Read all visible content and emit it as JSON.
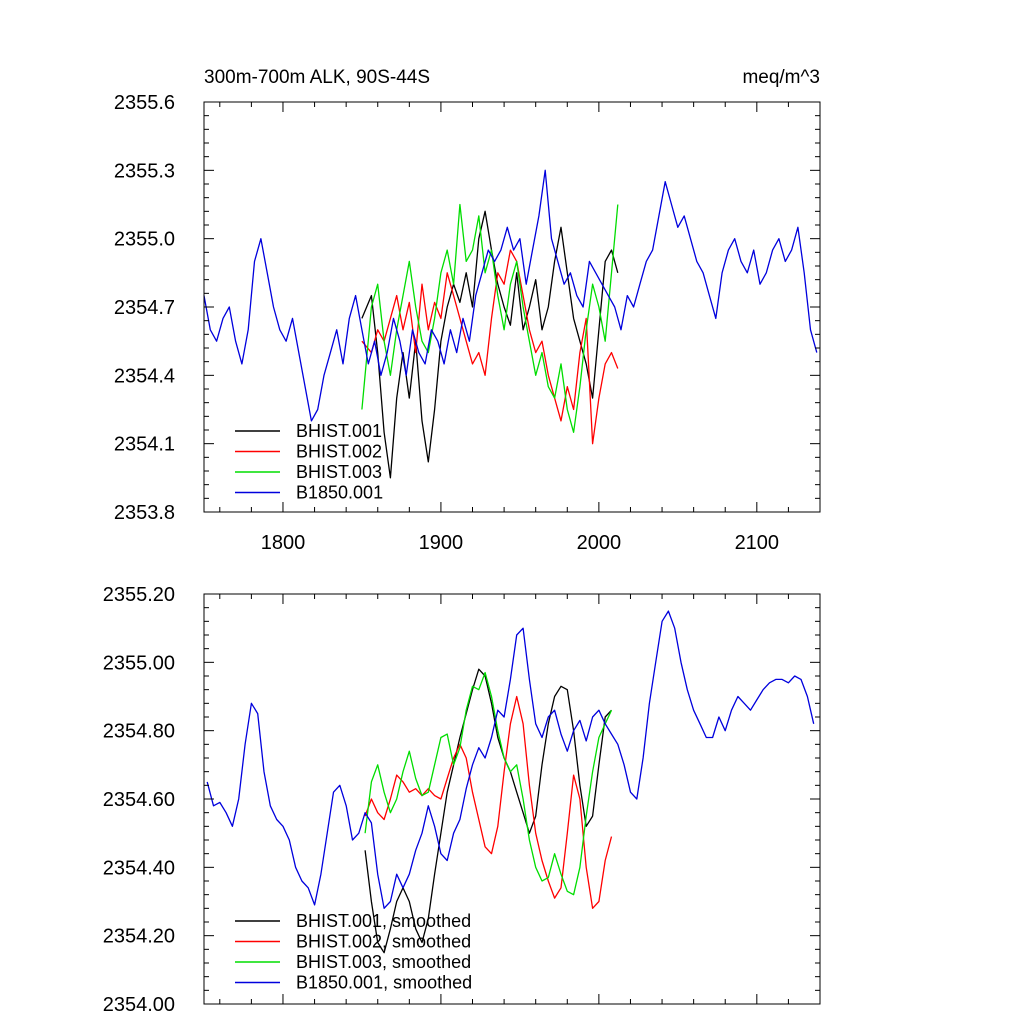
{
  "chart_data": [
    {
      "type": "line",
      "title": "300m-700m ALK, 90S-44S",
      "units": "meq/m^3",
      "xlim": [
        1750,
        2140
      ],
      "ylim": [
        2353.8,
        2355.6
      ],
      "xticks": [
        1800,
        1900,
        2000,
        2100
      ],
      "xtick_labels": [
        "1800",
        "1900",
        "2000",
        "2100"
      ],
      "yticks": [
        2353.8,
        2354.1,
        2354.4,
        2354.7,
        2355.0,
        2355.3,
        2355.6
      ],
      "ytick_labels": [
        "2353.8",
        "2354.1",
        "2354.4",
        "2354.7",
        "2355.0",
        "2355.3",
        "2355.6"
      ],
      "grid": false,
      "legend_position": "bottom-left",
      "series": [
        {
          "name": "BHIST.001",
          "color": "#000000",
          "x": [
            1850,
            1856,
            1860,
            1864,
            1868,
            1872,
            1876,
            1880,
            1884,
            1888,
            1892,
            1896,
            1900,
            1904,
            1908,
            1912,
            1916,
            1920,
            1924,
            1928,
            1932,
            1936,
            1940,
            1944,
            1948,
            1952,
            1956,
            1960,
            1964,
            1968,
            1972,
            1976,
            1980,
            1984,
            1988,
            1992,
            1996,
            2000,
            2004,
            2008,
            2012
          ],
          "y": [
            2354.65,
            2354.75,
            2354.5,
            2354.15,
            2353.95,
            2354.3,
            2354.5,
            2354.3,
            2354.55,
            2354.2,
            2354.02,
            2354.25,
            2354.55,
            2354.7,
            2354.8,
            2354.72,
            2354.85,
            2354.7,
            2355.0,
            2355.12,
            2354.95,
            2354.8,
            2354.7,
            2354.62,
            2354.85,
            2354.6,
            2354.7,
            2354.82,
            2354.6,
            2354.7,
            2354.9,
            2355.05,
            2354.85,
            2354.65,
            2354.55,
            2354.45,
            2354.3,
            2354.6,
            2354.9,
            2354.95,
            2354.85
          ]
        },
        {
          "name": "BHIST.002",
          "color": "#ff0000",
          "x": [
            1850,
            1856,
            1860,
            1864,
            1868,
            1872,
            1876,
            1880,
            1884,
            1888,
            1892,
            1896,
            1900,
            1904,
            1908,
            1912,
            1916,
            1920,
            1924,
            1928,
            1932,
            1936,
            1940,
            1944,
            1948,
            1952,
            1956,
            1960,
            1964,
            1968,
            1972,
            1976,
            1980,
            1984,
            1988,
            1992,
            1996,
            2000,
            2004,
            2008,
            2012
          ],
          "y": [
            2354.55,
            2354.5,
            2354.6,
            2354.55,
            2354.65,
            2354.75,
            2354.6,
            2354.72,
            2354.5,
            2354.8,
            2354.6,
            2354.72,
            2354.65,
            2354.85,
            2354.75,
            2354.65,
            2354.55,
            2354.45,
            2354.5,
            2354.4,
            2354.65,
            2354.85,
            2354.8,
            2354.95,
            2354.9,
            2354.75,
            2354.6,
            2354.5,
            2354.55,
            2354.4,
            2354.3,
            2354.2,
            2354.35,
            2354.25,
            2354.5,
            2354.65,
            2354.1,
            2354.3,
            2354.45,
            2354.5,
            2354.43
          ]
        },
        {
          "name": "BHIST.003",
          "color": "#00dd00",
          "x": [
            1850,
            1856,
            1860,
            1864,
            1868,
            1872,
            1876,
            1880,
            1884,
            1888,
            1892,
            1896,
            1900,
            1904,
            1908,
            1912,
            1916,
            1920,
            1924,
            1928,
            1932,
            1936,
            1940,
            1944,
            1948,
            1952,
            1956,
            1960,
            1964,
            1968,
            1972,
            1976,
            1980,
            1984,
            1988,
            1992,
            1996,
            2000,
            2004,
            2008,
            2012
          ],
          "y": [
            2354.25,
            2354.7,
            2354.8,
            2354.55,
            2354.4,
            2354.6,
            2354.75,
            2354.9,
            2354.7,
            2354.55,
            2354.5,
            2354.65,
            2354.85,
            2354.95,
            2354.8,
            2355.15,
            2354.9,
            2354.95,
            2355.1,
            2354.85,
            2354.95,
            2354.75,
            2354.6,
            2354.8,
            2354.9,
            2354.7,
            2354.55,
            2354.4,
            2354.5,
            2354.35,
            2354.3,
            2354.45,
            2354.25,
            2354.15,
            2354.35,
            2354.6,
            2354.8,
            2354.7,
            2354.55,
            2354.85,
            2355.15
          ]
        },
        {
          "name": "B1850.001",
          "color": "#0000dd",
          "x": [
            1750,
            1754,
            1758,
            1762,
            1766,
            1770,
            1774,
            1778,
            1782,
            1786,
            1790,
            1794,
            1798,
            1802,
            1806,
            1810,
            1814,
            1818,
            1822,
            1826,
            1830,
            1834,
            1838,
            1842,
            1846,
            1850,
            1854,
            1858,
            1862,
            1866,
            1870,
            1874,
            1878,
            1882,
            1886,
            1890,
            1894,
            1898,
            1902,
            1906,
            1910,
            1914,
            1918,
            1922,
            1926,
            1930,
            1934,
            1938,
            1942,
            1946,
            1950,
            1954,
            1958,
            1962,
            1966,
            1970,
            1974,
            1978,
            1982,
            1986,
            1990,
            1994,
            1998,
            2002,
            2006,
            2010,
            2014,
            2018,
            2022,
            2026,
            2030,
            2034,
            2038,
            2042,
            2046,
            2050,
            2054,
            2058,
            2062,
            2066,
            2070,
            2074,
            2078,
            2082,
            2086,
            2090,
            2094,
            2098,
            2102,
            2106,
            2110,
            2114,
            2118,
            2122,
            2126,
            2130,
            2134,
            2138
          ],
          "y": [
            2354.75,
            2354.6,
            2354.55,
            2354.65,
            2354.7,
            2354.55,
            2354.45,
            2354.6,
            2354.9,
            2355.0,
            2354.85,
            2354.7,
            2354.6,
            2354.55,
            2354.65,
            2354.5,
            2354.35,
            2354.2,
            2354.25,
            2354.4,
            2354.5,
            2354.6,
            2354.45,
            2354.65,
            2354.75,
            2354.6,
            2354.45,
            2354.55,
            2354.4,
            2354.5,
            2354.65,
            2354.55,
            2354.4,
            2354.6,
            2354.5,
            2354.45,
            2354.6,
            2354.55,
            2354.45,
            2354.6,
            2354.5,
            2354.65,
            2354.55,
            2354.75,
            2354.85,
            2354.95,
            2354.9,
            2354.95,
            2355.05,
            2354.95,
            2355.0,
            2354.8,
            2354.95,
            2355.1,
            2355.3,
            2355.0,
            2354.9,
            2354.8,
            2354.85,
            2354.75,
            2354.7,
            2354.9,
            2354.85,
            2354.8,
            2354.75,
            2354.7,
            2354.6,
            2354.75,
            2354.7,
            2354.8,
            2354.9,
            2354.95,
            2355.1,
            2355.25,
            2355.15,
            2355.05,
            2355.1,
            2355.0,
            2354.9,
            2354.85,
            2354.75,
            2354.65,
            2354.85,
            2354.95,
            2355.0,
            2354.9,
            2354.85,
            2354.95,
            2354.8,
            2354.85,
            2354.95,
            2355.0,
            2354.9,
            2354.95,
            2355.05,
            2354.85,
            2354.6,
            2354.5
          ]
        }
      ]
    },
    {
      "type": "line",
      "xlim": [
        1750,
        2140
      ],
      "ylim": [
        2354.0,
        2355.2
      ],
      "xticks": [
        1800,
        1900,
        2000,
        2100
      ],
      "yticks": [
        2354.0,
        2354.2,
        2354.4,
        2354.6,
        2354.8,
        2355.0,
        2355.2
      ],
      "ytick_labels": [
        "2354.00",
        "2354.20",
        "2354.40",
        "2354.60",
        "2354.80",
        "2355.00",
        "2355.20"
      ],
      "grid": false,
      "legend_position": "bottom-left",
      "series": [
        {
          "name": "BHIST.001, smoothed",
          "color": "#000000",
          "x": [
            1852,
            1856,
            1860,
            1864,
            1868,
            1872,
            1876,
            1880,
            1884,
            1888,
            1892,
            1896,
            1900,
            1904,
            1908,
            1912,
            1916,
            1920,
            1924,
            1928,
            1932,
            1936,
            1940,
            1944,
            1948,
            1952,
            1956,
            1960,
            1964,
            1968,
            1972,
            1976,
            1980,
            1984,
            1988,
            1992,
            1996,
            2000,
            2004,
            2008
          ],
          "y": [
            2354.45,
            2354.3,
            2354.18,
            2354.15,
            2354.22,
            2354.3,
            2354.34,
            2354.3,
            2354.22,
            2354.18,
            2354.25,
            2354.38,
            2354.5,
            2354.62,
            2354.7,
            2354.78,
            2354.85,
            2354.92,
            2354.98,
            2354.96,
            2354.88,
            2354.78,
            2354.72,
            2354.68,
            2354.62,
            2354.56,
            2354.5,
            2354.55,
            2354.7,
            2354.82,
            2354.9,
            2354.93,
            2354.92,
            2354.8,
            2354.64,
            2354.52,
            2354.55,
            2354.7,
            2354.84,
            2354.86
          ]
        },
        {
          "name": "BHIST.002, smoothed",
          "color": "#ff0000",
          "x": [
            1852,
            1856,
            1860,
            1864,
            1868,
            1872,
            1876,
            1880,
            1884,
            1888,
            1892,
            1896,
            1900,
            1904,
            1908,
            1912,
            1916,
            1920,
            1924,
            1928,
            1932,
            1936,
            1940,
            1944,
            1948,
            1952,
            1956,
            1960,
            1964,
            1968,
            1972,
            1976,
            1980,
            1984,
            1988,
            1992,
            1996,
            2000,
            2004,
            2008
          ],
          "y": [
            2354.55,
            2354.6,
            2354.56,
            2354.54,
            2354.6,
            2354.67,
            2354.65,
            2354.62,
            2354.63,
            2354.61,
            2354.63,
            2354.61,
            2354.6,
            2354.66,
            2354.72,
            2354.76,
            2354.72,
            2354.62,
            2354.54,
            2354.46,
            2354.44,
            2354.52,
            2354.68,
            2354.82,
            2354.9,
            2354.82,
            2354.64,
            2354.5,
            2354.42,
            2354.36,
            2354.31,
            2354.34,
            2354.5,
            2354.67,
            2354.6,
            2354.4,
            2354.28,
            2354.3,
            2354.42,
            2354.49
          ]
        },
        {
          "name": "BHIST.003, smoothed",
          "color": "#00dd00",
          "x": [
            1852,
            1856,
            1860,
            1864,
            1868,
            1872,
            1876,
            1880,
            1884,
            1888,
            1892,
            1896,
            1900,
            1904,
            1908,
            1912,
            1916,
            1920,
            1924,
            1928,
            1932,
            1936,
            1940,
            1944,
            1948,
            1952,
            1956,
            1960,
            1964,
            1968,
            1972,
            1976,
            1980,
            1984,
            1988,
            1992,
            1996,
            2000,
            2004,
            2008
          ],
          "y": [
            2354.5,
            2354.65,
            2354.7,
            2354.62,
            2354.56,
            2354.6,
            2354.68,
            2354.74,
            2354.66,
            2354.61,
            2354.62,
            2354.7,
            2354.78,
            2354.79,
            2354.7,
            2354.75,
            2354.86,
            2354.93,
            2354.92,
            2354.97,
            2354.9,
            2354.8,
            2354.72,
            2354.68,
            2354.7,
            2354.6,
            2354.48,
            2354.4,
            2354.36,
            2354.37,
            2354.44,
            2354.38,
            2354.33,
            2354.32,
            2354.4,
            2354.55,
            2354.68,
            2354.78,
            2354.82,
            2354.86
          ]
        },
        {
          "name": "B1850.001, smoothed",
          "color": "#0000dd",
          "x": [
            1752,
            1756,
            1760,
            1764,
            1768,
            1772,
            1776,
            1780,
            1784,
            1788,
            1792,
            1796,
            1800,
            1804,
            1808,
            1812,
            1816,
            1820,
            1824,
            1828,
            1832,
            1836,
            1840,
            1844,
            1848,
            1852,
            1856,
            1860,
            1864,
            1868,
            1872,
            1876,
            1880,
            1884,
            1888,
            1892,
            1896,
            1900,
            1904,
            1908,
            1912,
            1916,
            1920,
            1924,
            1928,
            1932,
            1936,
            1940,
            1944,
            1948,
            1952,
            1956,
            1960,
            1964,
            1968,
            1972,
            1976,
            1980,
            1984,
            1988,
            1992,
            1996,
            2000,
            2004,
            2008,
            2012,
            2016,
            2020,
            2024,
            2028,
            2032,
            2036,
            2040,
            2044,
            2048,
            2052,
            2056,
            2060,
            2064,
            2068,
            2072,
            2076,
            2080,
            2084,
            2088,
            2092,
            2096,
            2100,
            2104,
            2108,
            2112,
            2116,
            2120,
            2124,
            2128,
            2132,
            2136
          ],
          "y": [
            2354.65,
            2354.58,
            2354.59,
            2354.56,
            2354.52,
            2354.6,
            2354.76,
            2354.88,
            2354.85,
            2354.68,
            2354.58,
            2354.54,
            2354.52,
            2354.48,
            2354.4,
            2354.36,
            2354.34,
            2354.29,
            2354.38,
            2354.5,
            2354.62,
            2354.64,
            2354.58,
            2354.48,
            2354.5,
            2354.56,
            2354.53,
            2354.38,
            2354.28,
            2354.3,
            2354.38,
            2354.34,
            2354.38,
            2354.45,
            2354.5,
            2354.58,
            2354.52,
            2354.44,
            2354.42,
            2354.5,
            2354.54,
            2354.63,
            2354.7,
            2354.75,
            2354.72,
            2354.78,
            2354.86,
            2354.84,
            2354.95,
            2355.08,
            2355.1,
            2354.95,
            2354.82,
            2354.78,
            2354.84,
            2354.86,
            2354.79,
            2354.74,
            2354.8,
            2354.83,
            2354.77,
            2354.84,
            2354.86,
            2354.82,
            2354.79,
            2354.76,
            2354.7,
            2354.62,
            2354.6,
            2354.72,
            2354.88,
            2355.0,
            2355.12,
            2355.15,
            2355.1,
            2355.0,
            2354.92,
            2354.86,
            2354.82,
            2354.78,
            2354.78,
            2354.84,
            2354.8,
            2354.86,
            2354.9,
            2354.88,
            2354.86,
            2354.89,
            2354.92,
            2354.94,
            2354.95,
            2354.95,
            2354.94,
            2354.96,
            2354.95,
            2354.9,
            2354.82
          ]
        }
      ]
    }
  ]
}
